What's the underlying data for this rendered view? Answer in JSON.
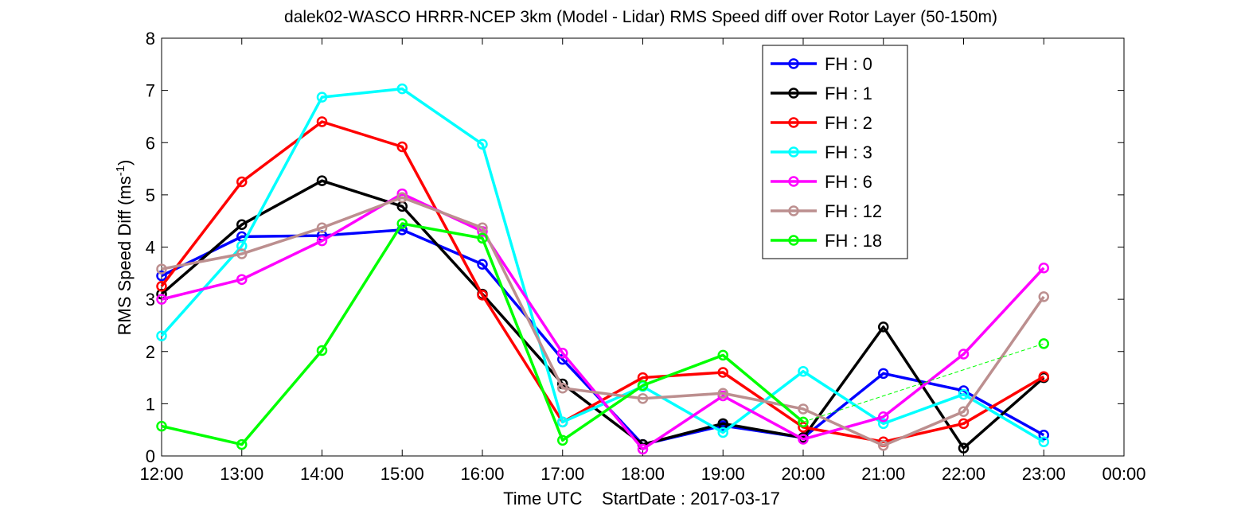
{
  "chart_data": {
    "type": "line",
    "title": "dalek02-WASCO HRRR-NCEP 3km (Model - Lidar) RMS Speed diff over Rotor Layer (50-150m)",
    "xlabel": "Time UTC    StartDate : 2017-03-17",
    "ylabel": "RMS Speed Diff (ms",
    "ylabel_sup": "-1",
    "ylabel_end": ")",
    "x_ticks": [
      "12:00",
      "13:00",
      "14:00",
      "15:00",
      "16:00",
      "17:00",
      "18:00",
      "19:00",
      "20:00",
      "21:00",
      "22:00",
      "23:00",
      "00:00"
    ],
    "y_ticks": [
      "0",
      "1",
      "2",
      "3",
      "4",
      "5",
      "6",
      "7",
      "8"
    ],
    "xlim": [
      12,
      24
    ],
    "ylim": [
      0,
      8
    ],
    "grid": false,
    "legend_position": "top-right",
    "series": [
      {
        "name": "FH : 0",
        "color": "#0000ff",
        "x": [
          12,
          13,
          14,
          15,
          16,
          17,
          18,
          19,
          20,
          21,
          22,
          23
        ],
        "values": [
          3.45,
          4.2,
          4.22,
          4.33,
          3.67,
          1.85,
          0.22,
          0.58,
          0.35,
          1.58,
          1.25,
          0.4
        ]
      },
      {
        "name": "FH : 1",
        "color": "#000000",
        "x": [
          12,
          13,
          14,
          15,
          16,
          17,
          18,
          19,
          20,
          21,
          22,
          23
        ],
        "values": [
          3.1,
          4.43,
          5.27,
          4.78,
          3.1,
          1.38,
          0.22,
          0.62,
          0.35,
          2.47,
          0.15,
          1.5
        ]
      },
      {
        "name": "FH : 2",
        "color": "#ff0000",
        "x": [
          12,
          13,
          14,
          15,
          16,
          17,
          18,
          19,
          20,
          21,
          22,
          23
        ],
        "values": [
          3.25,
          5.25,
          6.4,
          5.92,
          3.08,
          0.65,
          1.5,
          1.6,
          0.55,
          0.27,
          0.62,
          1.52
        ]
      },
      {
        "name": "FH : 3",
        "color": "#00ffff",
        "x": [
          12,
          13,
          14,
          15,
          16,
          17,
          18,
          19,
          20,
          21,
          22,
          23
        ],
        "values": [
          2.3,
          4.02,
          6.87,
          7.03,
          5.97,
          0.65,
          1.33,
          0.45,
          1.62,
          0.62,
          1.18,
          0.27
        ]
      },
      {
        "name": "FH : 6",
        "color": "#ff00ff",
        "x": [
          12,
          13,
          14,
          15,
          16,
          17,
          18,
          19,
          20,
          21,
          22,
          23
        ],
        "values": [
          3.0,
          3.38,
          4.12,
          5.02,
          4.3,
          1.97,
          0.13,
          1.15,
          0.32,
          0.75,
          1.95,
          3.6
        ]
      },
      {
        "name": "FH : 12",
        "color": "#bc8f8f",
        "x": [
          12,
          13,
          14,
          15,
          16,
          17,
          18,
          19,
          20,
          21,
          22,
          23
        ],
        "values": [
          3.58,
          3.87,
          4.37,
          4.95,
          4.37,
          1.3,
          1.1,
          1.2,
          0.9,
          0.2,
          0.85,
          3.05
        ]
      },
      {
        "name": "FH : 18",
        "color": "#00ff00",
        "x": [
          12,
          13,
          14,
          15,
          16,
          17,
          18,
          19,
          20
        ],
        "values": [
          0.57,
          0.22,
          2.02,
          4.45,
          4.17,
          0.3,
          1.35,
          1.93,
          0.65
        ],
        "dashed_extension": {
          "x": [
            20,
            23
          ],
          "values": [
            0.65,
            2.15
          ]
        },
        "extra_points": {
          "x": [
            23
          ],
          "values": [
            2.15
          ]
        }
      }
    ]
  }
}
